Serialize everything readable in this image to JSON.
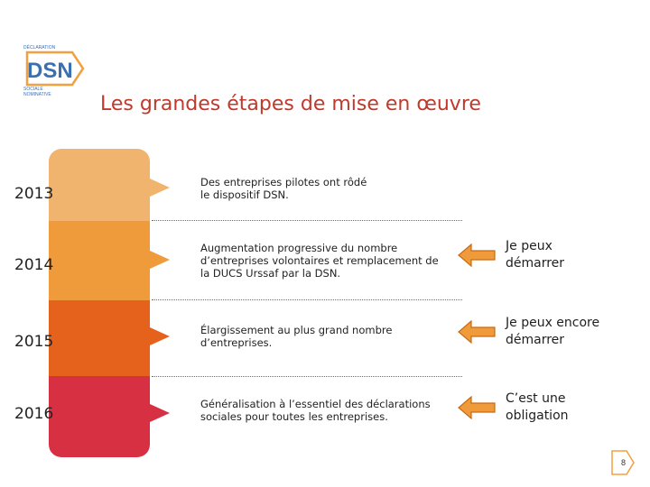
{
  "logo": {
    "top_text": "DÉCLARATION",
    "letters": "DSN",
    "bottom_line1": "SOCIALE",
    "bottom_line2": "NOMINATIVE",
    "colors": {
      "orange": "#f0a040",
      "blue": "#3a6fb0",
      "grey": "#8a8a8a"
    }
  },
  "title": "Les grandes étapes de mise en œuvre",
  "rows": [
    {
      "year": "2013",
      "color": "#f0b46e",
      "lines": [
        "Des entreprises pilotes ont rôdé",
        "le dispositif DSN."
      ],
      "status": []
    },
    {
      "year": "2014",
      "color": "#ef9a3b",
      "lines": [
        "Augmentation progressive du nombre",
        "d’entreprises volontaires et remplacement de",
        "la DUCS Urssaf par la DSN."
      ],
      "status": [
        "Je peux",
        "démarrer"
      ]
    },
    {
      "year": "2015",
      "color": "#e5621c",
      "lines": [
        "Élargissement au plus grand nombre",
        "d’entreprises."
      ],
      "status": [
        "Je peux encore",
        "démarrer"
      ]
    },
    {
      "year": "2016",
      "color": "#d63042",
      "lines": [
        "Généralisation à l’essentiel des déclarations",
        "sociales pour toutes les entreprises."
      ],
      "status": [
        "C’est une",
        "obligation"
      ]
    }
  ],
  "arrow_color": "#ef9a3b",
  "page_number": "8"
}
